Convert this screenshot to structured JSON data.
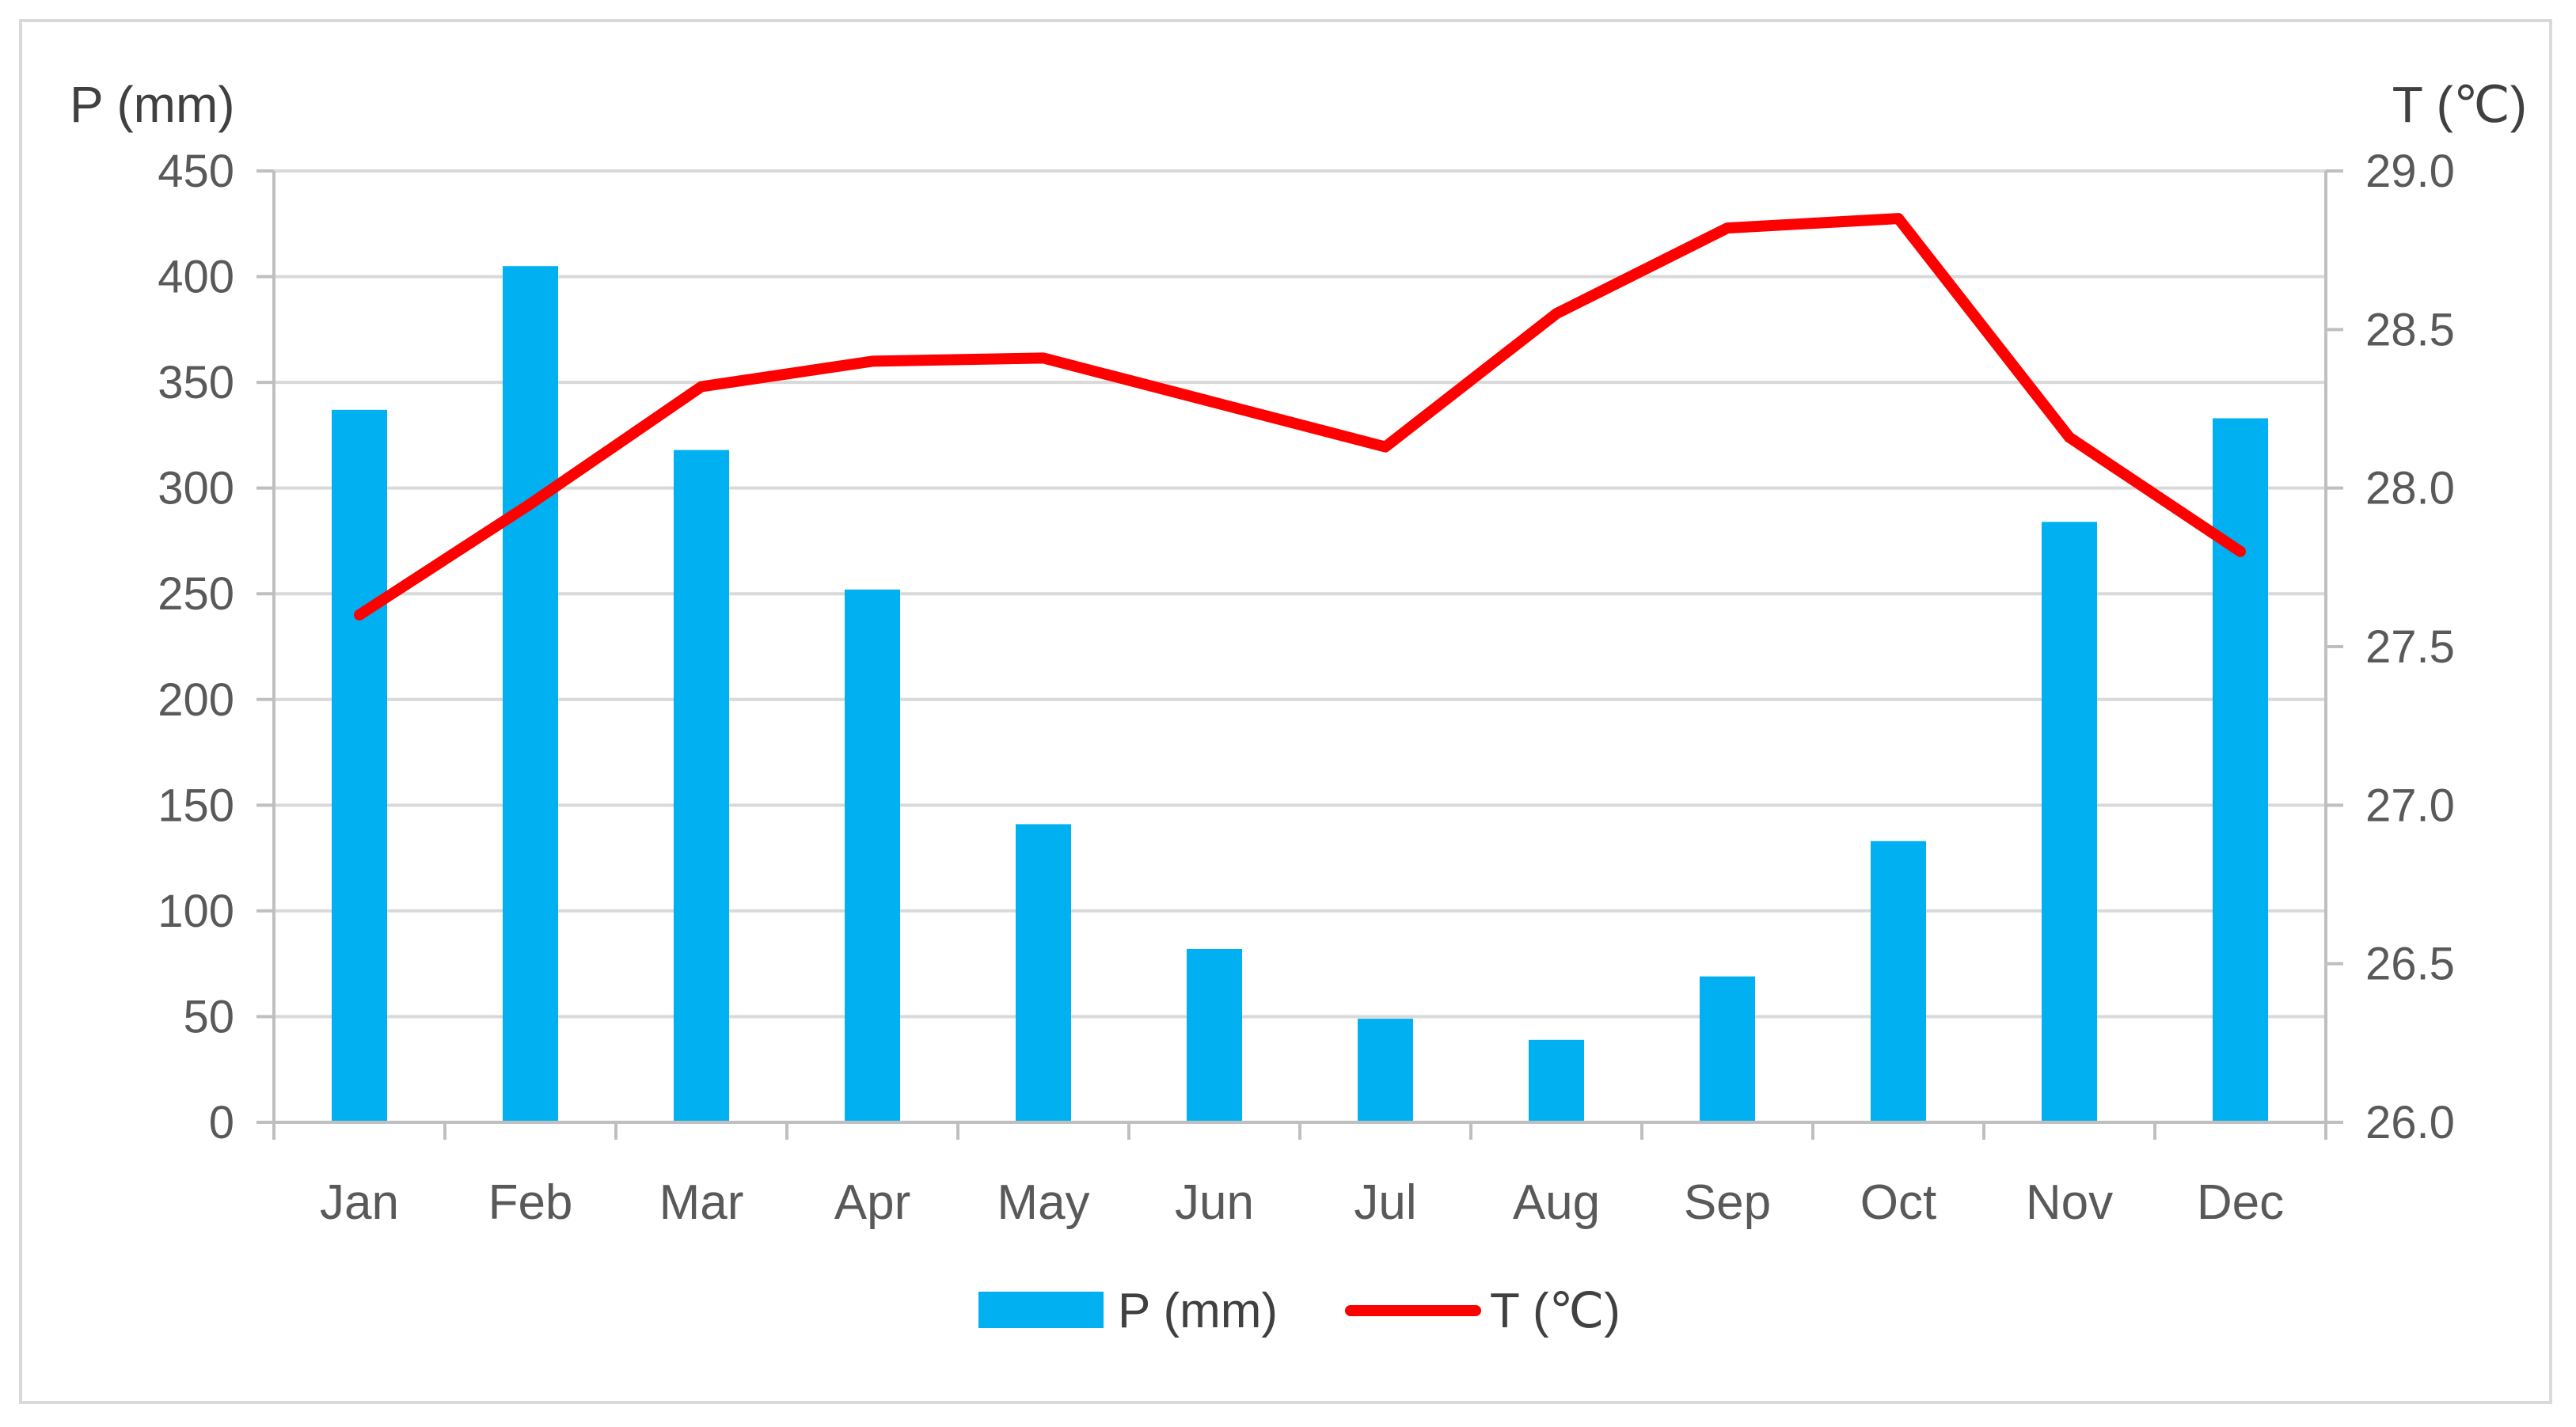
{
  "chart_data": {
    "type": "bar+line",
    "categories": [
      "Jan",
      "Feb",
      "Mar",
      "Apr",
      "May",
      "Jun",
      "Jul",
      "Aug",
      "Sep",
      "Oct",
      "Nov",
      "Dec"
    ],
    "series": [
      {
        "name": "P (mm)",
        "type": "bar",
        "axis": "left",
        "color": "#00b0f0",
        "values": [
          337,
          405,
          318,
          252,
          141,
          82,
          49,
          39,
          69,
          133,
          284,
          333
        ]
      },
      {
        "name": "T (℃)",
        "type": "line",
        "axis": "right",
        "color": "#ff0000",
        "values": [
          27.6,
          27.95,
          28.32,
          28.4,
          28.41,
          28.27,
          28.13,
          28.55,
          28.82,
          28.85,
          28.16,
          27.8
        ]
      }
    ],
    "y_left": {
      "label": "P (mm)",
      "range": [
        0,
        450
      ],
      "ticks": [
        "0",
        "50",
        "100",
        "150",
        "200",
        "250",
        "300",
        "350",
        "400",
        "450"
      ]
    },
    "y_right": {
      "label": "T (℃)",
      "range": [
        26.0,
        29.0
      ],
      "ticks": [
        "26.0",
        "26.5",
        "27.0",
        "27.5",
        "28.0",
        "28.5",
        "29.0"
      ]
    },
    "grid": true,
    "legend": "bottom"
  }
}
